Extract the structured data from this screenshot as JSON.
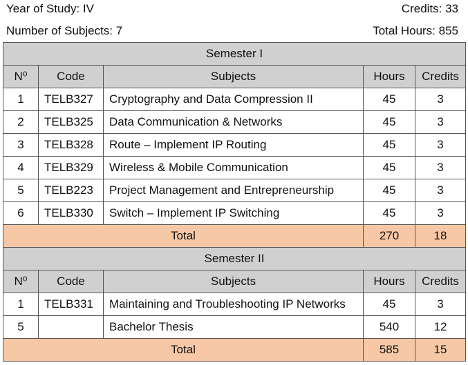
{
  "header": {
    "year_label": "Year of Study: IV",
    "credits_label": "Credits: 33",
    "subjects_label": "Number of Subjects: 7",
    "hours_label": "Total Hours: 855"
  },
  "columns": {
    "no": "N⁰",
    "code": "Code",
    "subjects": "Subjects",
    "hours": "Hours",
    "credits": "Credits"
  },
  "semester1": {
    "title": "Semester I",
    "rows": [
      {
        "no": "1",
        "code": "TELB327",
        "subject": "Cryptography and Data Compression II",
        "hours": "45",
        "credits": "3"
      },
      {
        "no": "2",
        "code": "TELB325",
        "subject": "Data Communication & Networks",
        "hours": "45",
        "credits": "3"
      },
      {
        "no": "3",
        "code": "TELB328",
        "subject": "Route – Implement IP Routing",
        "hours": "45",
        "credits": "3"
      },
      {
        "no": "4",
        "code": "TELB329",
        "subject": "Wireless & Mobile Communication",
        "hours": "45",
        "credits": "3"
      },
      {
        "no": "5",
        "code": "TELB223",
        "subject": "Project Management and Entrepreneurship",
        "hours": "45",
        "credits": "3"
      },
      {
        "no": "6",
        "code": "TELB330",
        "subject": "Switch – Implement IP Switching",
        "hours": "45",
        "credits": "3"
      }
    ],
    "total": {
      "label": "Total",
      "hours": "270",
      "credits": "18"
    }
  },
  "semester2": {
    "title": "Semester II",
    "rows": [
      {
        "no": "1",
        "code": "TELB331",
        "subject": "Maintaining and Troubleshooting IP Networks",
        "hours": "45",
        "credits": "3"
      },
      {
        "no": "5",
        "code": "",
        "subject": "Bachelor Thesis",
        "hours": "540",
        "credits": "12"
      }
    ],
    "total": {
      "label": "Total",
      "hours": "585",
      "credits": "15"
    }
  },
  "colors": {
    "header_bg": "#d0d0d0",
    "total_bg": "#f7c8a6",
    "border": "#555555"
  }
}
